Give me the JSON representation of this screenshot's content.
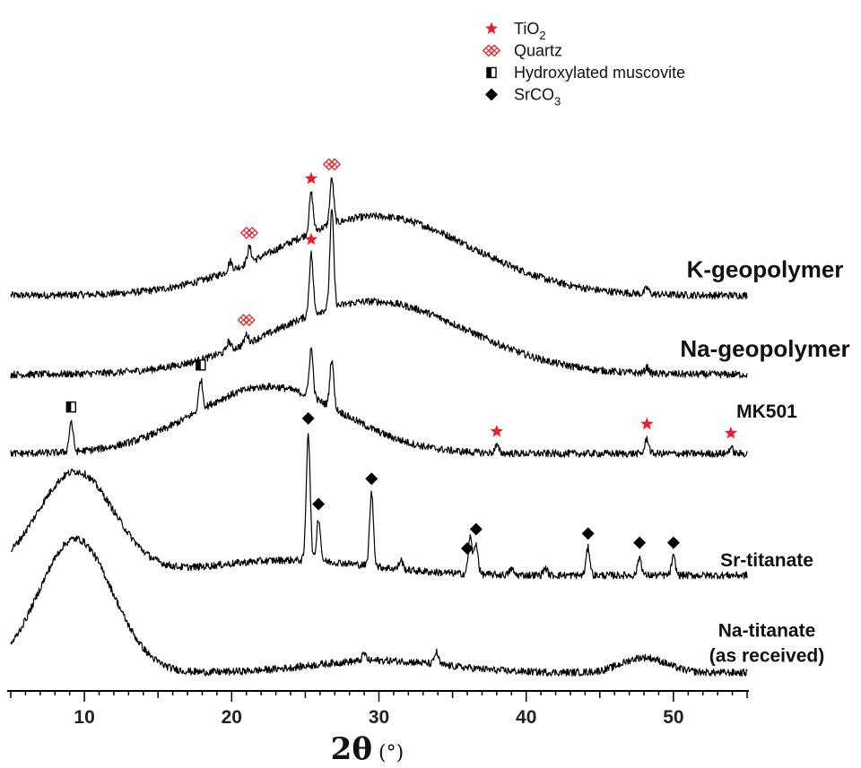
{
  "chart_data": {
    "type": "line",
    "title": "",
    "xlabel": "2θ (°)",
    "xlabel_main": "2θ",
    "xlabel_unit": "(°)",
    "ylabel": "",
    "xlim": [
      5,
      55
    ],
    "xticks": [
      10,
      20,
      30,
      40,
      50
    ],
    "stacked_offset": true,
    "series": [
      {
        "name": "K-geopolymer",
        "baseline": 0.65,
        "noise": 0.006,
        "features": [
          {
            "type": "hump",
            "center": 29.8,
            "width": 6.5,
            "height": 0.13
          },
          {
            "type": "peak",
            "x": 21.2,
            "height": 0.025
          },
          {
            "type": "peak",
            "x": 25.4,
            "height": 0.065
          },
          {
            "type": "peak",
            "x": 26.8,
            "height": 0.075
          },
          {
            "type": "peak",
            "x": 19.9,
            "height": 0.015
          },
          {
            "type": "peak",
            "x": 48.2,
            "height": 0.01
          }
        ]
      },
      {
        "name": "Na-geopolymer",
        "baseline": 0.52,
        "noise": 0.006,
        "features": [
          {
            "type": "hump",
            "center": 29.5,
            "width": 6.5,
            "height": 0.12
          },
          {
            "type": "peak",
            "x": 21.0,
            "height": 0.015
          },
          {
            "type": "peak",
            "x": 25.4,
            "height": 0.1
          },
          {
            "type": "peak",
            "x": 26.8,
            "height": 0.16
          },
          {
            "type": "peak",
            "x": 19.8,
            "height": 0.015
          },
          {
            "type": "peak",
            "x": 48.2,
            "height": 0.01
          }
        ]
      },
      {
        "name": "MK501",
        "baseline": 0.39,
        "noise": 0.006,
        "features": [
          {
            "type": "hump",
            "center": 22.5,
            "width": 5.0,
            "height": 0.11
          },
          {
            "type": "peak",
            "x": 9.1,
            "height": 0.05
          },
          {
            "type": "peak",
            "x": 17.9,
            "height": 0.05
          },
          {
            "type": "peak",
            "x": 25.4,
            "height": 0.08
          },
          {
            "type": "peak",
            "x": 26.8,
            "height": 0.08
          },
          {
            "type": "peak",
            "x": 38.0,
            "height": 0.012
          },
          {
            "type": "peak",
            "x": 48.2,
            "height": 0.025
          },
          {
            "type": "peak",
            "x": 53.9,
            "height": 0.01
          }
        ]
      },
      {
        "name": "Sr-titanate",
        "baseline": 0.19,
        "noise": 0.006,
        "features": [
          {
            "type": "hump",
            "center": 9.4,
            "width": 2.6,
            "height": 0.17
          },
          {
            "type": "hump",
            "center": 24.0,
            "width": 5.5,
            "height": 0.025
          },
          {
            "type": "peak",
            "x": 25.2,
            "height": 0.21
          },
          {
            "type": "peak",
            "x": 25.9,
            "height": 0.07
          },
          {
            "type": "peak",
            "x": 29.5,
            "height": 0.12
          },
          {
            "type": "peak",
            "x": 31.5,
            "height": 0.015
          },
          {
            "type": "peak",
            "x": 36.2,
            "height": 0.06
          },
          {
            "type": "peak",
            "x": 36.6,
            "height": 0.05
          },
          {
            "type": "peak",
            "x": 39.0,
            "height": 0.01
          },
          {
            "type": "peak",
            "x": 41.3,
            "height": 0.012
          },
          {
            "type": "peak",
            "x": 44.2,
            "height": 0.045
          },
          {
            "type": "peak",
            "x": 47.7,
            "height": 0.03
          },
          {
            "type": "peak",
            "x": 50.0,
            "height": 0.03
          }
        ]
      },
      {
        "name": "Na-titanate (as received)",
        "baseline": 0.03,
        "noise": 0.006,
        "features": [
          {
            "type": "hump",
            "center": 9.4,
            "width": 2.5,
            "height": 0.22
          },
          {
            "type": "hump",
            "center": 30.0,
            "width": 4.5,
            "height": 0.02
          },
          {
            "type": "hump",
            "center": 48.0,
            "width": 1.5,
            "height": 0.025
          },
          {
            "type": "peak",
            "x": 29.0,
            "height": 0.012
          },
          {
            "type": "peak",
            "x": 33.9,
            "height": 0.02
          }
        ]
      }
    ],
    "sample_labels": [
      {
        "text": "K-geopolymer",
        "series": "K-geopolymer"
      },
      {
        "text": "Na-geopolymer",
        "series": "Na-geopolymer"
      },
      {
        "text": "MK501",
        "series": "MK501"
      },
      {
        "text": "Sr-titanate",
        "series": "Sr-titanate"
      },
      {
        "text": "Na-titanate",
        "series": "Na-titanate (as received)"
      },
      {
        "text": "(as received)",
        "series": "Na-titanate (as received)"
      }
    ],
    "legend": {
      "placement": "top-right",
      "items": [
        {
          "label": "TiO",
          "subscript": "2",
          "marker": "star",
          "color": "#e8202a"
        },
        {
          "label": "Quartz",
          "subscript": "",
          "marker": "quartz",
          "color": "#e8202a"
        },
        {
          "label": "Hydroxylated muscovite",
          "subscript": "",
          "marker": "half-square",
          "color": "#000000"
        },
        {
          "label": "SrCO",
          "subscript": "3",
          "marker": "diamond",
          "color": "#000000"
        }
      ]
    },
    "phase_markers": [
      {
        "series": "K-geopolymer",
        "x": 21.2,
        "marker": "quartz"
      },
      {
        "series": "K-geopolymer",
        "x": 25.4,
        "marker": "star"
      },
      {
        "series": "K-geopolymer",
        "x": 26.8,
        "marker": "quartz"
      },
      {
        "series": "Na-geopolymer",
        "x": 21.0,
        "marker": "quartz"
      },
      {
        "series": "Na-geopolymer",
        "x": 25.4,
        "marker": "star"
      },
      {
        "series": "MK501",
        "x": 9.1,
        "marker": "half-square"
      },
      {
        "series": "MK501",
        "x": 17.9,
        "marker": "half-square"
      },
      {
        "series": "MK501",
        "x": 38.0,
        "marker": "star"
      },
      {
        "series": "MK501",
        "x": 48.2,
        "marker": "star"
      },
      {
        "series": "MK501",
        "x": 53.9,
        "marker": "star"
      },
      {
        "series": "Sr-titanate",
        "x": 25.2,
        "marker": "diamond"
      },
      {
        "series": "Sr-titanate",
        "x": 25.9,
        "marker": "diamond"
      },
      {
        "series": "Sr-titanate",
        "x": 29.5,
        "marker": "diamond"
      },
      {
        "series": "Sr-titanate",
        "x": 36.0,
        "marker": "diamond"
      },
      {
        "series": "Sr-titanate",
        "x": 36.6,
        "marker": "diamond"
      },
      {
        "series": "Sr-titanate",
        "x": 44.2,
        "marker": "diamond"
      },
      {
        "series": "Sr-titanate",
        "x": 47.7,
        "marker": "diamond"
      },
      {
        "series": "Sr-titanate",
        "x": 50.0,
        "marker": "diamond"
      }
    ],
    "colors": {
      "line": "#000000",
      "tio2": "#e8202a",
      "quartz": "#e8202a",
      "muscovite": "#000000",
      "srco3": "#000000"
    }
  }
}
